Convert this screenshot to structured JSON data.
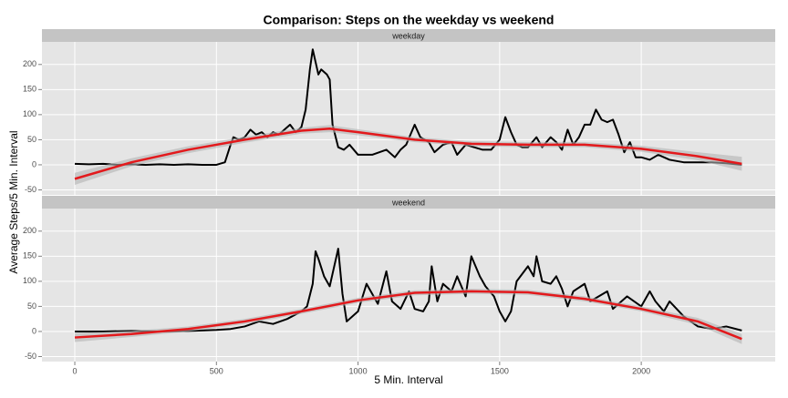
{
  "chart_data": {
    "type": "line",
    "title": "Comparison: Steps on the weekday vs weekend",
    "x_label": "5 Min. Interval",
    "y_label": "Average Steps/5 Min. Interval",
    "xlim": [
      -116,
      2473
    ],
    "xticks": [
      0,
      500,
      1000,
      1500,
      2000
    ],
    "ylim": [
      -60,
      245
    ],
    "yticks": [
      -50,
      0,
      50,
      100,
      150,
      200
    ],
    "grid": true,
    "panels": [
      {
        "strip": "weekday",
        "series": [
          {
            "color": "#000000",
            "x": [
              0,
              50,
              100,
              150,
              200,
              250,
              300,
              350,
              400,
              450,
              500,
              530,
              550,
              560,
              580,
              600,
              620,
              640,
              660,
              680,
              700,
              720,
              740,
              760,
              780,
              800,
              815,
              830,
              840,
              850,
              860,
              870,
              880,
              890,
              900,
              910,
              930,
              950,
              970,
              1000,
              1050,
              1100,
              1130,
              1150,
              1170,
              1200,
              1220,
              1250,
              1270,
              1300,
              1330,
              1350,
              1380,
              1410,
              1440,
              1470,
              1500,
              1520,
              1540,
              1560,
              1580,
              1600,
              1630,
              1650,
              1680,
              1700,
              1720,
              1740,
              1760,
              1780,
              1800,
              1820,
              1840,
              1860,
              1880,
              1900,
              1920,
              1940,
              1960,
              1980,
              2000,
              2030,
              2060,
              2100,
              2150,
              2200,
              2250,
              2300,
              2355
            ],
            "values": [
              2,
              1,
              2,
              0,
              1,
              0,
              1,
              0,
              1,
              0,
              0,
              5,
              40,
              55,
              50,
              55,
              70,
              60,
              65,
              55,
              65,
              60,
              70,
              80,
              65,
              75,
              110,
              190,
              230,
              205,
              180,
              190,
              185,
              180,
              170,
              80,
              35,
              30,
              40,
              20,
              20,
              30,
              15,
              30,
              40,
              80,
              55,
              45,
              25,
              40,
              45,
              20,
              40,
              35,
              30,
              30,
              50,
              95,
              65,
              40,
              35,
              35,
              55,
              35,
              55,
              45,
              30,
              70,
              40,
              55,
              80,
              80,
              110,
              90,
              85,
              90,
              60,
              25,
              45,
              15,
              15,
              10,
              20,
              10,
              5,
              5,
              5,
              3,
              0
            ]
          }
        ],
        "smooth": {
          "color": "#e3191c",
          "band_color": "#b3b3b3",
          "x": [
            0,
            200,
            400,
            600,
            800,
            900,
            1000,
            1200,
            1400,
            1600,
            1800,
            2000,
            2200,
            2355
          ],
          "values": [
            -28,
            5,
            30,
            50,
            68,
            72,
            65,
            50,
            42,
            40,
            40,
            32,
            17,
            2
          ],
          "lower": [
            -40,
            -3,
            23,
            44,
            62,
            65,
            59,
            45,
            37,
            35,
            35,
            26,
            9,
            -12
          ],
          "upper": [
            -16,
            13,
            37,
            56,
            74,
            79,
            71,
            55,
            47,
            45,
            45,
            38,
            25,
            16
          ]
        }
      },
      {
        "strip": "weekend",
        "series": [
          {
            "color": "#000000",
            "x": [
              0,
              100,
              200,
              300,
              400,
              450,
              500,
              550,
              600,
              650,
              700,
              750,
              800,
              820,
              840,
              850,
              860,
              880,
              900,
              920,
              930,
              945,
              960,
              990,
              1000,
              1030,
              1050,
              1070,
              1100,
              1120,
              1150,
              1180,
              1200,
              1230,
              1250,
              1260,
              1280,
              1300,
              1330,
              1350,
              1380,
              1400,
              1430,
              1450,
              1480,
              1500,
              1520,
              1540,
              1560,
              1600,
              1620,
              1630,
              1650,
              1680,
              1700,
              1720,
              1740,
              1760,
              1800,
              1820,
              1850,
              1880,
              1900,
              1950,
              2000,
              2030,
              2050,
              2080,
              2100,
              2150,
              2200,
              2250,
              2300,
              2355
            ],
            "values": [
              0,
              0,
              1,
              0,
              1,
              2,
              3,
              5,
              10,
              20,
              15,
              25,
              40,
              50,
              95,
              160,
              145,
              110,
              90,
              140,
              165,
              75,
              20,
              35,
              40,
              95,
              75,
              55,
              120,
              60,
              45,
              80,
              45,
              40,
              60,
              130,
              60,
              95,
              80,
              110,
              70,
              150,
              110,
              90,
              70,
              40,
              20,
              40,
              100,
              130,
              110,
              150,
              100,
              95,
              110,
              85,
              50,
              80,
              95,
              60,
              70,
              80,
              45,
              70,
              50,
              80,
              60,
              40,
              60,
              30,
              10,
              5,
              10,
              2
            ]
          }
        ],
        "smooth": {
          "color": "#e3191c",
          "band_color": "#b3b3b3",
          "x": [
            0,
            200,
            400,
            600,
            800,
            1000,
            1200,
            1400,
            1600,
            1800,
            2000,
            2200,
            2355
          ],
          "values": [
            -12,
            -5,
            5,
            20,
            40,
            62,
            77,
            80,
            78,
            65,
            45,
            20,
            -15
          ],
          "lower": [
            -21,
            -11,
            0,
            15,
            35,
            57,
            72,
            75,
            73,
            60,
            40,
            13,
            -25
          ],
          "upper": [
            -3,
            1,
            10,
            25,
            45,
            67,
            82,
            85,
            83,
            70,
            50,
            27,
            -5
          ]
        }
      }
    ]
  }
}
